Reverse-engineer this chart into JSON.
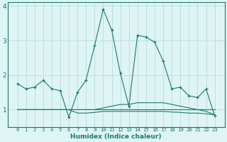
{
  "xlabel": "Humidex (Indice chaleur)",
  "x": [
    0,
    1,
    2,
    3,
    4,
    5,
    6,
    7,
    8,
    9,
    10,
    11,
    12,
    13,
    14,
    15,
    16,
    17,
    18,
    19,
    20,
    21,
    22,
    23
  ],
  "line1": [
    1.75,
    1.6,
    1.65,
    1.85,
    1.6,
    1.55,
    0.78,
    1.5,
    1.85,
    2.85,
    3.9,
    3.3,
    2.05,
    1.1,
    3.15,
    3.1,
    2.95,
    2.4,
    1.6,
    1.65,
    1.4,
    1.35,
    1.6,
    0.82
  ],
  "line2": [
    1.0,
    1.0,
    1.0,
    1.0,
    1.0,
    1.0,
    1.0,
    1.0,
    1.0,
    1.0,
    1.05,
    1.1,
    1.15,
    1.15,
    1.2,
    1.2,
    1.2,
    1.2,
    1.15,
    1.1,
    1.05,
    1.0,
    0.95,
    0.85
  ],
  "line3": [
    1.0,
    1.0,
    1.0,
    1.0,
    1.0,
    1.0,
    1.0,
    0.9,
    0.9,
    0.92,
    0.95,
    0.95,
    0.95,
    0.95,
    0.95,
    0.95,
    0.95,
    0.95,
    0.93,
    0.92,
    0.9,
    0.9,
    0.88,
    0.85
  ],
  "line4": [
    1.0,
    1.0,
    1.0,
    1.0,
    1.0,
    1.0,
    1.0,
    1.0,
    1.0,
    1.0,
    1.0,
    1.0,
    1.0,
    1.0,
    1.0,
    1.0,
    1.0,
    1.0,
    1.0,
    1.0,
    1.0,
    1.0,
    1.0,
    1.0
  ],
  "line_color": "#1a7a6e",
  "bg_color": "#dff4f4",
  "grid_color": "#afd8d8",
  "ylim": [
    0.5,
    4.1
  ],
  "yticks": [
    1,
    2,
    3,
    4
  ],
  "xticks": [
    0,
    1,
    2,
    3,
    4,
    5,
    6,
    7,
    8,
    9,
    10,
    11,
    12,
    13,
    14,
    15,
    16,
    17,
    18,
    19,
    20,
    21,
    22,
    23
  ]
}
